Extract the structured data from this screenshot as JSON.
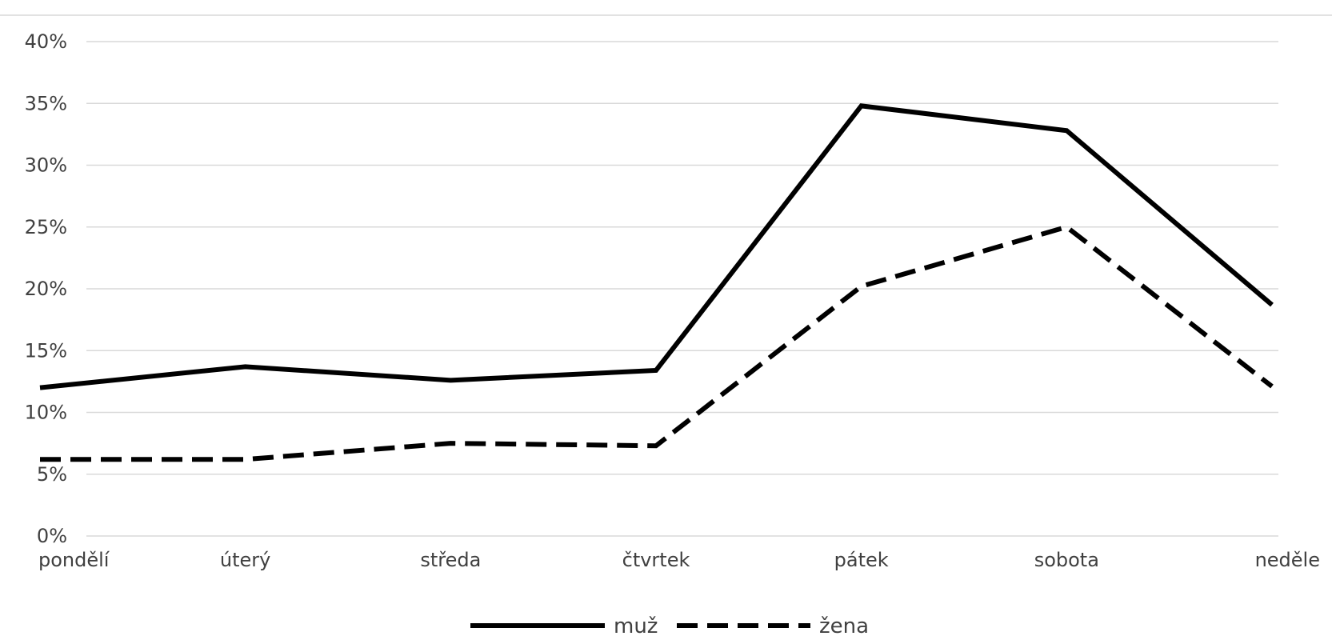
{
  "chart_data": {
    "type": "line",
    "categories": [
      "pondělí",
      "úterý",
      "středa",
      "čtvrtek",
      "pátek",
      "sobota",
      "neděle"
    ],
    "ylim": [
      0,
      40
    ],
    "yticks": [
      0,
      5,
      10,
      15,
      20,
      25,
      30,
      35,
      40
    ],
    "ytick_labels": [
      "0%",
      "5%",
      "10%",
      "15%",
      "20%",
      "25%",
      "30%",
      "35%",
      "40%"
    ],
    "grid": true,
    "legend_position": "bottom-center",
    "colors": {
      "line": "#000000",
      "grid": "#d9d9d9",
      "text": "#404040"
    },
    "series": [
      {
        "name": "muž",
        "style": "solid",
        "values": [
          12.0,
          13.7,
          12.6,
          13.4,
          34.8,
          32.8,
          18.7
        ]
      },
      {
        "name": "žena",
        "style": "dashed",
        "values": [
          6.2,
          6.2,
          7.5,
          7.3,
          20.2,
          25.0,
          12.1
        ]
      }
    ]
  }
}
